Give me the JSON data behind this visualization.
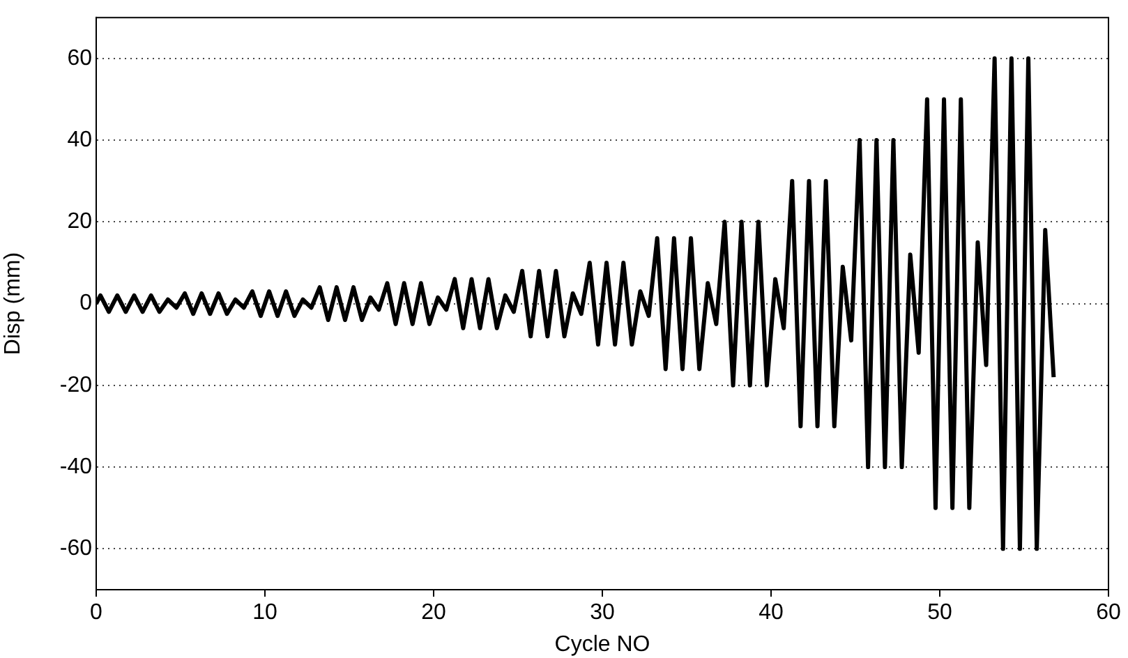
{
  "chart_data": {
    "type": "line",
    "xlabel": "Cycle NO",
    "ylabel": "Disp (mm)",
    "xlim": [
      0,
      60
    ],
    "xticks": [
      0,
      10,
      20,
      30,
      40,
      50,
      60
    ],
    "ylim": [
      -70,
      70
    ],
    "yticks": [
      -60,
      -40,
      -20,
      0,
      20,
      40,
      60
    ],
    "grid": "y",
    "legend": false,
    "marker": "none",
    "line_style": "solid",
    "series": [
      {
        "color": "#000000",
        "x": [
          0,
          0.25,
          0.75,
          1.25,
          1.75,
          2.25,
          2.75,
          3.25,
          3.75,
          4.25,
          4.75,
          5.25,
          5.75,
          6.25,
          6.75,
          7.25,
          7.75,
          8.25,
          8.75,
          9.25,
          9.75,
          10.25,
          10.75,
          11.25,
          11.75,
          12.25,
          12.75,
          13.25,
          13.75,
          14.25,
          14.75,
          15.25,
          15.75,
          16.25,
          16.75,
          17.25,
          17.75,
          18.25,
          18.75,
          19.25,
          19.75,
          20.25,
          20.75,
          21.25,
          21.75,
          22.25,
          22.75,
          23.25,
          23.75,
          24.25,
          24.75,
          25.25,
          25.75,
          26.25,
          26.75,
          27.25,
          27.75,
          28.25,
          28.75,
          29.25,
          29.75,
          30.25,
          30.75,
          31.25,
          31.75,
          32.25,
          32.75,
          33.25,
          33.75,
          34.25,
          34.75,
          35.25,
          35.75,
          36.25,
          36.75,
          37.25,
          37.75,
          38.25,
          38.75,
          39.25,
          39.75,
          40.25,
          40.75,
          41.25,
          41.75,
          42.25,
          42.75,
          43.25,
          43.75,
          44.25,
          44.75,
          45.25,
          45.75,
          46.25,
          46.75,
          47.25,
          47.75,
          48.25,
          48.75,
          49.25,
          49.75,
          50.25,
          50.75,
          51.25,
          51.75,
          52.25,
          52.75,
          53.25,
          53.75,
          54.25,
          54.75,
          55.25,
          55.75,
          56.25,
          56.75
        ],
        "values": [
          0,
          2,
          -2,
          2,
          -2,
          2,
          -2,
          2,
          -2,
          1,
          -1,
          2.5,
          -2.5,
          2.5,
          -2.5,
          2.5,
          -2.5,
          1,
          -1,
          3,
          -3,
          3,
          -3,
          3,
          -3,
          1,
          -1,
          4,
          -4,
          4,
          -4,
          4,
          -4,
          1.5,
          -1.5,
          5,
          -5,
          5,
          -5,
          5,
          -5,
          1.5,
          -1.5,
          6,
          -6,
          6,
          -6,
          6,
          -6,
          2,
          -2,
          8,
          -8,
          8,
          -8,
          8,
          -8,
          2.5,
          -2.5,
          10,
          -10,
          10,
          -10,
          10,
          -10,
          3,
          -3,
          16,
          -16,
          16,
          -16,
          16,
          -16,
          5,
          -5,
          20,
          -20,
          20,
          -20,
          20,
          -20,
          6,
          -6,
          30,
          -30,
          30,
          -30,
          30,
          -30,
          9,
          -9,
          40,
          -40,
          40,
          -40,
          40,
          -40,
          12,
          -12,
          50,
          -50,
          50,
          -50,
          50,
          -50,
          15,
          -15,
          60,
          -60,
          60,
          -60,
          60,
          -60,
          18,
          -18
        ]
      }
    ]
  }
}
